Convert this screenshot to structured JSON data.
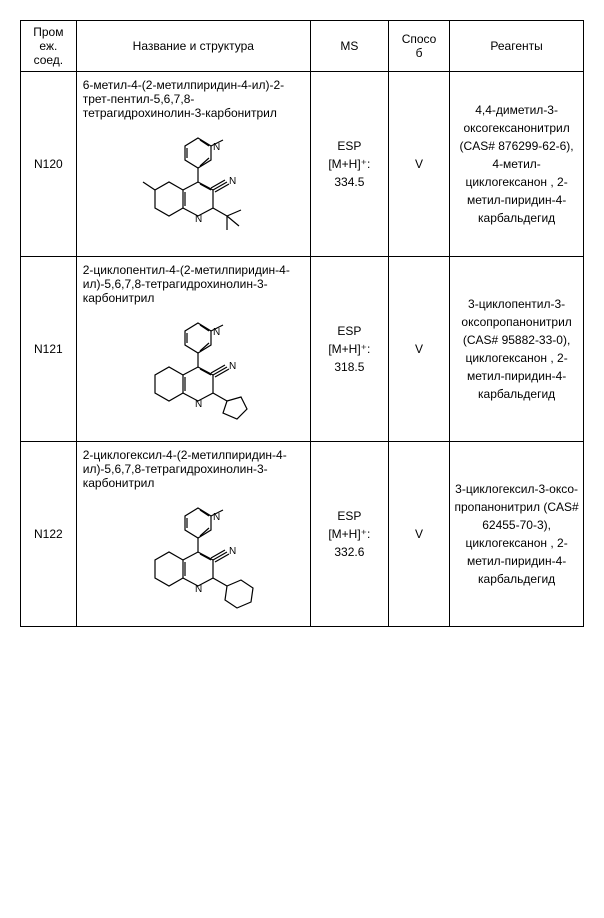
{
  "headers": {
    "id": "Пром\nеж.\nсоед.",
    "name": "Название и структура",
    "ms": "MS",
    "method": "Спосо\nб",
    "reagents": "Реагенты"
  },
  "rows": [
    {
      "id": "N120",
      "name": "6-метил-4-(2-метилпиридин-4-ил)-2-трет-пентил-5,6,7,8-тетрагидрохинолин-3-карбонитрил",
      "ms_label": "ESP",
      "ms_ion": "[M+H]⁺:",
      "ms_value": "334.5",
      "method": "V",
      "reagents": "4,4-диметил-3-оксогексанонитрил (CAS# 876299-62-6), 4-метил-циклогексанон , 2-метил-пиридин-4-карбальдегид"
    },
    {
      "id": "N121",
      "name": "2-циклопентил-4-(2-метилпиридин-4-ил)-5,6,7,8-тетрагидрохинолин-3-карбонитрил",
      "ms_label": "ESP",
      "ms_ion": "[M+H]⁺:",
      "ms_value": "318.5",
      "method": "V",
      "reagents": "3-циклопентил-3-оксопропанонитрил (CAS# 95882-33-0), циклогексанон , 2-метил-пиридин-4-карбальдегид"
    },
    {
      "id": "N122",
      "name": "2-циклогексил-4-(2-метилпиридин-4-ил)-5,6,7,8-тетрагидрохинолин-3-карбонитрил",
      "ms_label": "ESP",
      "ms_ion": "[M+H]⁺:",
      "ms_value": "332.6",
      "method": "V",
      "reagents": "3-циклогексил-3-оксо-пропанонитрил (CAS# 62455-70-3), циклогексанон , 2-метил-пиридин-4-карбальдегид"
    }
  ],
  "structure_stroke": "#000000",
  "structure_stroke_width": 1.2
}
